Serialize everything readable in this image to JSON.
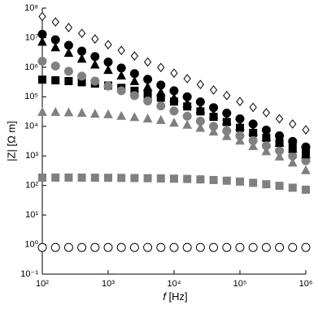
{
  "chart_data": {
    "type": "scatter",
    "xlabel": "f [Hz]",
    "ylabel": "|Z| [Ω m]",
    "xscale": "log",
    "yscale": "log",
    "xlim": [
      100,
      1000000
    ],
    "ylim": [
      0.1,
      100000000
    ],
    "xticks": [
      {
        "value": 100,
        "label": "10²"
      },
      {
        "value": 1000,
        "label": "10³"
      },
      {
        "value": 10000,
        "label": "10⁴"
      },
      {
        "value": 100000,
        "label": "10⁵"
      },
      {
        "value": 1000000,
        "label": "10⁶"
      }
    ],
    "yticks": [
      {
        "value": 0.1,
        "label": "10⁻¹"
      },
      {
        "value": 1,
        "label": "10⁰"
      },
      {
        "value": 10,
        "label": "10¹"
      },
      {
        "value": 100,
        "label": "10²"
      },
      {
        "value": 1000,
        "label": "10³"
      },
      {
        "value": 10000,
        "label": "10⁴"
      },
      {
        "value": 100000,
        "label": "10⁵"
      },
      {
        "value": 1000000,
        "label": "10⁶"
      },
      {
        "value": 10000000,
        "label": "10⁷"
      },
      {
        "value": 100000000,
        "label": "10⁸"
      }
    ],
    "x": [
      100,
      158.5,
      251.2,
      398.1,
      631,
      1000,
      1585,
      2512,
      3981,
      6310,
      10000,
      15850,
      25120,
      39810,
      63100,
      100000,
      158500,
      251200,
      398100,
      631000,
      1000000
    ],
    "series": [
      {
        "marker": "square",
        "filled": true,
        "color": "#808080",
        "values": [
          185,
          185,
          185,
          184,
          183,
          182,
          180,
          178,
          176,
          173,
          170,
          166,
          160,
          153,
          145,
          135,
          123,
          110,
          97,
          84,
          72
        ]
      },
      {
        "marker": "circle",
        "filled": false,
        "color": "#000000",
        "values": [
          0.8,
          0.8,
          0.8,
          0.8,
          0.8,
          0.8,
          0.8,
          0.8,
          0.8,
          0.8,
          0.8,
          0.8,
          0.8,
          0.8,
          0.8,
          0.8,
          0.8,
          0.8,
          0.8,
          0.8,
          0.8
        ]
      },
      {
        "marker": "triangle",
        "filled": true,
        "color": "#808080",
        "values": [
          30000,
          30000,
          29000,
          28000,
          26000,
          25000,
          22000,
          20000,
          18000,
          16000,
          13000,
          11000,
          8700,
          6500,
          4600,
          3200,
          2100,
          1400,
          930,
          580,
          320
        ]
      },
      {
        "marker": "square",
        "filled": true,
        "color": "#000000",
        "values": [
          380000,
          360000,
          340000,
          310000,
          280000,
          240000,
          200000,
          160000,
          120000,
          93000,
          69000,
          47000,
          32000,
          21000,
          14000,
          8900,
          6000,
          4100,
          2800,
          1900,
          1300
        ]
      },
      {
        "marker": "circle",
        "filled": true,
        "color": "#808080",
        "values": [
          1600000,
          1100000,
          730000,
          500000,
          340000,
          230000,
          160000,
          110000,
          72000,
          49000,
          33000,
          22000,
          15000,
          10000,
          7000,
          4800,
          3300,
          2200,
          1500,
          1000,
          690
        ]
      },
      {
        "marker": "triangle",
        "filled": true,
        "color": "#000000",
        "values": [
          7100000,
          4600000,
          3000000,
          1900000,
          1200000,
          790000,
          510000,
          330000,
          210000,
          140000,
          89000,
          58000,
          37000,
          24000,
          15000,
          10000,
          6500,
          4200,
          2700,
          1700,
          1100
        ]
      },
      {
        "marker": "circle",
        "filled": true,
        "color": "#000000",
        "values": [
          13000000,
          8500000,
          5500000,
          3500000,
          2300000,
          1500000,
          940000,
          610000,
          390000,
          250000,
          160000,
          100000,
          67000,
          43000,
          28000,
          18000,
          12000,
          7500,
          4800,
          3100,
          2000
        ]
      },
      {
        "marker": "diamond",
        "filled": false,
        "color": "#000000",
        "values": [
          52000000,
          34000000,
          22000000,
          14000000,
          9000000,
          5800000,
          3700000,
          2400000,
          1500000,
          980000,
          630000,
          410000,
          260000,
          170000,
          110000,
          69000,
          44000,
          29000,
          18000,
          12000,
          7600
        ]
      }
    ]
  }
}
